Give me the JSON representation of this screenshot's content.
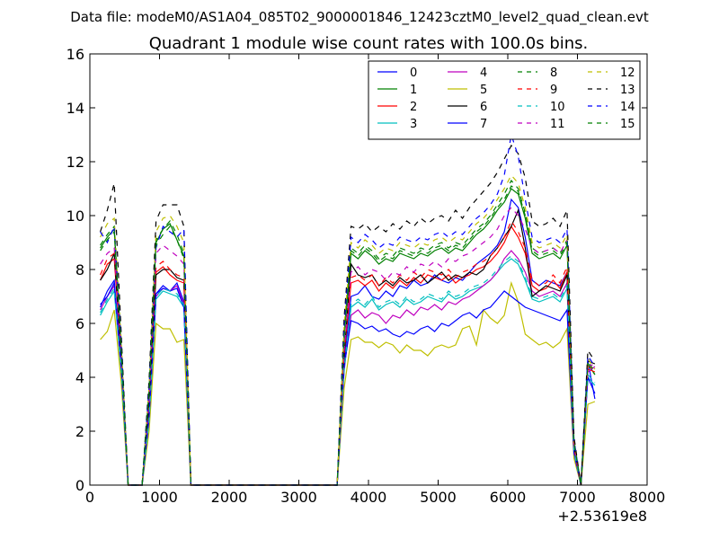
{
  "chart_data": {
    "type": "line",
    "suptitle": "Data file: modeM0/AS1A04_085T02_9000001846_12423cztM0_level2_quad_clean.evt",
    "title": "Quadrant 1 module wise count rates with 100.0s bins.",
    "xlabel": "",
    "ylabel": "",
    "x_offset_label": "+2.53619e8",
    "xlim": [
      0,
      8000
    ],
    "ylim": [
      0,
      16
    ],
    "x_ticks": [
      0,
      1000,
      2000,
      3000,
      4000,
      5000,
      6000,
      7000,
      8000
    ],
    "x_tick_labels": [
      "0",
      "1000",
      "2000",
      "3000",
      "4000",
      "5000",
      "6000",
      "7000",
      "8000"
    ],
    "y_ticks": [
      0,
      2,
      4,
      6,
      8,
      10,
      12,
      14,
      16
    ],
    "y_tick_labels": [
      "0",
      "2",
      "4",
      "6",
      "8",
      "10",
      "12",
      "14",
      "16"
    ],
    "grid": false,
    "legend_position": "top-right",
    "legend_columns": 4,
    "x": [
      150,
      250,
      350,
      450,
      550,
      650,
      750,
      850,
      950,
      1050,
      1150,
      1250,
      1350,
      1450,
      1550,
      3550,
      3650,
      3750,
      3850,
      3950,
      4050,
      4150,
      4250,
      4350,
      4450,
      4550,
      4650,
      4750,
      4850,
      4950,
      5050,
      5150,
      5250,
      5350,
      5450,
      5550,
      5650,
      5750,
      5850,
      5950,
      6050,
      6150,
      6250,
      6350,
      6450,
      6550,
      6650,
      6750,
      6850,
      6950,
      7050,
      7150,
      7250
    ],
    "series": [
      {
        "name": "0",
        "color": "#0000ff",
        "dash": "solid",
        "values": [
          6.6,
          7.2,
          7.6,
          4.5,
          0,
          0,
          0,
          2.5,
          7.1,
          7.4,
          7.2,
          7.5,
          6.8,
          0,
          0,
          0,
          4.5,
          7.0,
          7.1,
          7.4,
          7.0,
          6.9,
          7.2,
          7.0,
          7.4,
          7.3,
          7.6,
          7.4,
          7.5,
          7.8,
          7.6,
          7.5,
          7.7,
          7.6,
          7.9,
          8.2,
          8.4,
          8.6,
          8.9,
          9.4,
          10.6,
          10.3,
          9.2,
          7.6,
          7.4,
          7.6,
          7.5,
          7.4,
          7.9,
          1.5,
          0,
          4.6,
          3.2
        ]
      },
      {
        "name": "1",
        "color": "#008000",
        "dash": "solid",
        "values": [
          8.8,
          9.2,
          9.5,
          5.0,
          0,
          0,
          0,
          3.5,
          9.0,
          9.5,
          9.7,
          9.1,
          8.5,
          0,
          0,
          0,
          5.5,
          8.6,
          8.4,
          8.7,
          8.5,
          8.2,
          8.4,
          8.3,
          8.6,
          8.5,
          8.4,
          8.6,
          8.5,
          8.7,
          8.8,
          8.6,
          8.8,
          8.7,
          9.0,
          9.3,
          9.5,
          9.8,
          10.2,
          10.5,
          11.0,
          10.8,
          9.9,
          8.6,
          8.4,
          8.5,
          8.6,
          8.4,
          8.9,
          1.6,
          0,
          4.5,
          4.1
        ]
      },
      {
        "name": "2",
        "color": "#ff0000",
        "dash": "solid",
        "values": [
          7.6,
          8.2,
          8.4,
          4.8,
          0,
          0,
          0,
          3.0,
          7.9,
          8.1,
          7.8,
          7.6,
          7.5,
          0,
          0,
          0,
          4.8,
          7.5,
          7.6,
          7.4,
          7.6,
          7.2,
          7.5,
          7.3,
          7.6,
          7.4,
          7.7,
          7.5,
          7.8,
          7.7,
          7.6,
          7.8,
          7.5,
          7.7,
          7.8,
          8.0,
          8.1,
          8.3,
          8.6,
          9.0,
          9.6,
          9.2,
          8.6,
          7.4,
          7.2,
          7.3,
          7.6,
          7.3,
          7.9,
          1.4,
          0,
          4.3,
          4.2
        ]
      },
      {
        "name": "3",
        "color": "#00bfbf",
        "dash": "solid",
        "values": [
          6.3,
          6.8,
          7.2,
          4.2,
          0,
          0,
          0,
          2.4,
          6.9,
          7.2,
          7.1,
          7.0,
          6.6,
          0,
          0,
          0,
          4.2,
          6.6,
          6.8,
          6.6,
          6.9,
          6.5,
          6.7,
          6.8,
          6.6,
          6.9,
          6.7,
          6.8,
          7.0,
          6.9,
          6.8,
          7.1,
          6.9,
          7.0,
          7.2,
          7.3,
          7.4,
          7.6,
          7.9,
          8.2,
          8.4,
          8.2,
          7.6,
          6.9,
          6.8,
          6.9,
          7.0,
          6.8,
          7.3,
          1.3,
          0,
          4.0,
          3.7
        ]
      },
      {
        "name": "4",
        "color": "#bf00bf",
        "dash": "solid",
        "values": [
          6.5,
          7.0,
          7.4,
          4.3,
          0,
          0,
          0,
          2.5,
          7.0,
          7.3,
          7.2,
          7.4,
          6.7,
          0,
          0,
          0,
          4.3,
          6.3,
          6.5,
          6.2,
          6.4,
          6.3,
          6.0,
          6.3,
          6.2,
          6.5,
          6.3,
          6.6,
          6.5,
          6.7,
          6.5,
          6.8,
          6.7,
          6.9,
          7.0,
          7.2,
          7.4,
          7.6,
          7.9,
          8.4,
          8.7,
          8.4,
          7.9,
          7.2,
          7.0,
          7.1,
          7.2,
          7.0,
          7.5,
          1.3,
          0,
          4.2,
          4.4
        ]
      },
      {
        "name": "5",
        "color": "#bfbf00",
        "dash": "solid",
        "values": [
          5.4,
          5.7,
          6.5,
          3.8,
          0,
          0,
          0,
          2.0,
          6.0,
          5.8,
          5.8,
          5.3,
          5.4,
          0,
          0,
          0,
          3.6,
          5.4,
          5.5,
          5.3,
          5.3,
          5.1,
          5.3,
          5.2,
          4.9,
          5.2,
          5.0,
          5.0,
          4.8,
          5.1,
          5.2,
          5.1,
          5.2,
          5.8,
          5.9,
          5.2,
          6.5,
          6.2,
          6.0,
          6.3,
          7.5,
          6.8,
          5.6,
          5.4,
          5.2,
          5.3,
          5.1,
          5.3,
          5.8,
          1.0,
          0,
          3.0,
          3.1
        ]
      },
      {
        "name": "6",
        "color": "#000000",
        "dash": "solid",
        "values": [
          7.6,
          8.0,
          8.6,
          4.8,
          0,
          0,
          0,
          3.0,
          7.8,
          8.0,
          8.0,
          7.7,
          7.6,
          0,
          0,
          0,
          4.8,
          8.2,
          7.8,
          7.7,
          7.8,
          7.4,
          7.6,
          7.4,
          7.7,
          7.5,
          7.6,
          7.8,
          7.5,
          7.7,
          7.9,
          7.6,
          7.8,
          7.7,
          7.9,
          7.8,
          8.0,
          8.5,
          8.8,
          9.2,
          9.6,
          10.2,
          8.8,
          7.0,
          7.2,
          7.4,
          7.3,
          7.2,
          7.8,
          1.4,
          0,
          4.6,
          4.5
        ]
      },
      {
        "name": "7",
        "color": "#0000ff",
        "dash": "solid",
        "values": [
          6.7,
          7.0,
          7.5,
          4.4,
          0,
          0,
          0,
          2.5,
          7.1,
          7.3,
          7.2,
          7.3,
          6.6,
          0,
          0,
          0,
          4.4,
          6.1,
          6.0,
          5.8,
          5.9,
          5.7,
          5.8,
          5.6,
          5.5,
          5.7,
          5.6,
          5.8,
          5.9,
          5.7,
          6.0,
          5.9,
          6.1,
          6.3,
          6.4,
          6.2,
          6.5,
          6.6,
          6.9,
          7.2,
          7.0,
          6.8,
          6.6,
          6.5,
          6.4,
          6.3,
          6.2,
          6.1,
          6.5,
          1.2,
          0,
          4.0,
          3.4
        ]
      },
      {
        "name": "8",
        "color": "#008000",
        "dash": "dashed",
        "values": [
          8.9,
          9.3,
          9.6,
          5.1,
          0,
          0,
          0,
          3.5,
          9.1,
          9.5,
          9.8,
          9.3,
          8.6,
          0,
          0,
          0,
          5.6,
          8.8,
          8.6,
          8.9,
          8.7,
          8.4,
          8.6,
          8.5,
          8.8,
          8.7,
          8.6,
          8.8,
          8.7,
          8.9,
          9.0,
          8.8,
          9.0,
          8.9,
          9.2,
          9.5,
          9.7,
          10.0,
          10.4,
          10.8,
          11.3,
          11.0,
          10.1,
          8.8,
          8.6,
          8.7,
          8.8,
          8.6,
          9.1,
          1.6,
          0,
          4.6,
          4.2
        ]
      },
      {
        "name": "9",
        "color": "#ff0000",
        "dash": "dashed",
        "values": [
          7.8,
          8.4,
          8.6,
          4.9,
          0,
          0,
          0,
          3.1,
          8.1,
          8.3,
          8.0,
          7.8,
          7.7,
          0,
          0,
          0,
          4.9,
          7.7,
          7.8,
          7.6,
          7.8,
          7.4,
          7.7,
          7.5,
          7.8,
          7.6,
          7.9,
          7.7,
          8.0,
          7.9,
          7.8,
          8.0,
          7.7,
          7.9,
          8.0,
          8.2,
          8.3,
          8.5,
          8.8,
          9.2,
          9.8,
          9.4,
          8.8,
          7.6,
          7.4,
          7.5,
          7.8,
          7.5,
          8.1,
          1.4,
          0,
          4.4,
          4.3
        ]
      },
      {
        "name": "10",
        "color": "#00bfbf",
        "dash": "dashed",
        "values": [
          6.4,
          6.9,
          7.3,
          4.3,
          0,
          0,
          0,
          2.4,
          7.0,
          7.3,
          7.2,
          7.1,
          6.7,
          0,
          0,
          0,
          4.3,
          6.7,
          6.9,
          6.7,
          7.0,
          6.6,
          6.8,
          6.9,
          6.7,
          7.0,
          6.8,
          6.9,
          7.1,
          7.0,
          6.9,
          7.2,
          7.0,
          7.1,
          7.3,
          7.4,
          7.5,
          7.7,
          8.0,
          8.3,
          8.5,
          8.3,
          7.7,
          7.0,
          6.9,
          7.0,
          7.1,
          6.9,
          7.4,
          1.3,
          0,
          4.1,
          3.8
        ]
      },
      {
        "name": "11",
        "color": "#bf00bf",
        "dash": "dashed",
        "values": [
          8.2,
          8.6,
          8.8,
          5.0,
          0,
          0,
          0,
          3.2,
          8.6,
          8.9,
          8.7,
          8.5,
          8.2,
          0,
          0,
          0,
          5.0,
          7.9,
          8.1,
          7.8,
          8.0,
          7.9,
          7.6,
          7.9,
          7.8,
          8.1,
          7.9,
          8.2,
          8.1,
          8.3,
          8.1,
          8.4,
          8.3,
          8.5,
          8.6,
          8.8,
          9.0,
          9.2,
          9.5,
          10.0,
          10.3,
          10.0,
          9.5,
          8.8,
          8.6,
          8.7,
          8.8,
          8.6,
          9.1,
          1.5,
          0,
          4.4,
          4.5
        ]
      },
      {
        "name": "12",
        "color": "#bfbf00",
        "dash": "dashed",
        "values": [
          9.2,
          9.7,
          9.9,
          5.4,
          0,
          0,
          0,
          3.7,
          9.4,
          9.9,
          10.0,
          9.6,
          9.0,
          0,
          0,
          0,
          5.9,
          9.0,
          8.8,
          9.1,
          8.9,
          8.6,
          8.8,
          8.7,
          9.0,
          8.9,
          8.8,
          9.0,
          8.9,
          9.1,
          9.2,
          9.0,
          9.2,
          9.1,
          9.4,
          9.7,
          9.9,
          10.2,
          10.6,
          11.0,
          11.5,
          11.2,
          10.3,
          9.0,
          8.8,
          8.9,
          9.0,
          8.8,
          9.3,
          1.7,
          0,
          4.7,
          4.3
        ]
      },
      {
        "name": "13",
        "color": "#000000",
        "dash": "dashed",
        "values": [
          9.4,
          10.2,
          11.2,
          5.6,
          0,
          0,
          0,
          3.9,
          9.8,
          10.4,
          10.4,
          10.4,
          9.6,
          0,
          0,
          0,
          6.2,
          9.6,
          9.5,
          9.7,
          9.4,
          9.6,
          9.4,
          9.7,
          9.5,
          9.8,
          9.6,
          9.9,
          9.7,
          9.9,
          10.0,
          9.8,
          10.2,
          9.9,
          10.3,
          10.6,
          10.9,
          11.2,
          11.6,
          12.1,
          12.6,
          12.3,
          11.4,
          9.8,
          9.6,
          9.7,
          9.9,
          9.6,
          10.2,
          1.8,
          0,
          5.0,
          4.6
        ]
      },
      {
        "name": "14",
        "color": "#0000ff",
        "dash": "dashed",
        "values": [
          9.4,
          9.0,
          9.6,
          5.2,
          0,
          0,
          0,
          3.6,
          8.8,
          9.6,
          9.4,
          9.2,
          9.5,
          0,
          0,
          0,
          5.8,
          9.2,
          9.0,
          9.3,
          9.1,
          8.8,
          9.0,
          8.9,
          9.2,
          9.1,
          9.0,
          9.2,
          9.1,
          9.3,
          9.4,
          9.2,
          9.4,
          9.3,
          9.6,
          9.9,
          10.1,
          10.4,
          10.8,
          11.5,
          13.0,
          12.2,
          10.6,
          9.2,
          9.0,
          9.1,
          9.2,
          9.0,
          9.5,
          1.7,
          0,
          4.8,
          4.4
        ]
      },
      {
        "name": "15",
        "color": "#008000",
        "dash": "dashed",
        "values": [
          8.7,
          9.1,
          9.4,
          5.0,
          0,
          0,
          0,
          3.4,
          8.9,
          9.3,
          9.6,
          9.1,
          8.4,
          0,
          0,
          0,
          5.5,
          8.7,
          8.5,
          8.8,
          8.6,
          8.3,
          8.5,
          8.4,
          8.7,
          8.6,
          8.5,
          8.7,
          8.6,
          8.8,
          8.9,
          8.7,
          8.9,
          8.8,
          9.1,
          9.4,
          9.6,
          9.9,
          10.3,
          10.6,
          11.1,
          10.9,
          10.0,
          8.7,
          8.5,
          8.6,
          8.7,
          8.5,
          9.0,
          1.6,
          0,
          4.5,
          4.1
        ]
      }
    ]
  }
}
